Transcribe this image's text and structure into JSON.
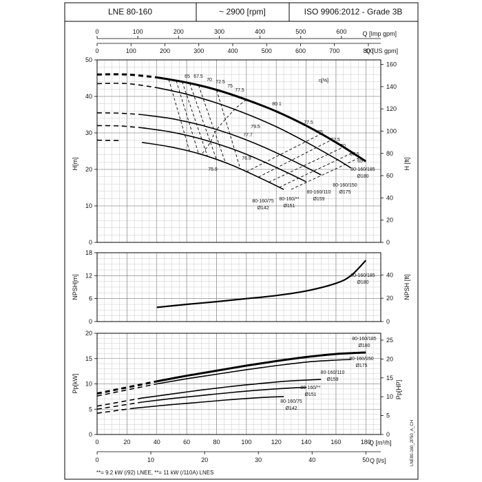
{
  "header": {
    "model": "LNE 80-160",
    "speed": "~ 2900 [rpm]",
    "standard": "ISO 9906:2012 - Grade 3B"
  },
  "footer": {
    "note": "**= 9.2 kW (/92) LNEE, **= 11 kW (/110A) LNES",
    "code": "LNE80-160_2P50_A_CH"
  },
  "chart_data": [
    {
      "type": "line",
      "panel": "head",
      "xlabel": "Q [m³/h]",
      "ylabel": "H[m]",
      "ylabel_right": "H [ft]",
      "xlim": [
        0,
        190
      ],
      "ylim": [
        0,
        50
      ],
      "yticks": [
        0,
        10,
        20,
        30,
        40,
        50
      ],
      "yticks_right": [
        0,
        20,
        40,
        60,
        80,
        100,
        120,
        140,
        160
      ],
      "top_axis_imp": {
        "label": "Q [Imp gpm]",
        "ticks": [
          0,
          100,
          200,
          300,
          400,
          500,
          600
        ]
      },
      "top_axis_us": {
        "label": "Q [US gpm]",
        "ticks": [
          0,
          100,
          200,
          300,
          400,
          500,
          600,
          700,
          800
        ]
      },
      "efficiency_label": "η[%]",
      "series": [
        {
          "name": "80-160/185",
          "diameter": "Ø180",
          "q_min": 40,
          "x": [
            0,
            20,
            40,
            60,
            80,
            100,
            120,
            140,
            160,
            180
          ],
          "y": [
            46,
            46.0,
            45.2,
            43.8,
            41.8,
            39.1,
            35.9,
            32.0,
            27.4,
            22.2
          ]
        },
        {
          "name": "80-160/150",
          "diameter": "Ø175",
          "q_min": 40,
          "x": [
            0,
            20,
            40,
            60,
            80,
            100,
            120,
            140,
            160,
            170
          ],
          "y": [
            43.5,
            43.5,
            42.4,
            40.6,
            38.2,
            35.2,
            31.7,
            27.5,
            22.9,
            20.4
          ]
        },
        {
          "name": "80-160/110",
          "diameter": "Ø159",
          "q_min": 30,
          "x": [
            0,
            15,
            30,
            50,
            70,
            90,
            110,
            130,
            150
          ],
          "y": [
            35.5,
            35.4,
            35.0,
            33.9,
            32.1,
            29.6,
            26.4,
            22.6,
            18.5
          ]
        },
        {
          "name": "80-160/**",
          "diameter": "Ø151",
          "q_min": 30,
          "x": [
            0,
            15,
            30,
            50,
            70,
            90,
            110,
            130,
            140
          ],
          "y": [
            32,
            31.9,
            31.4,
            30.2,
            28.3,
            25.7,
            22.4,
            18.6,
            16.6
          ]
        },
        {
          "name": "80-160/75",
          "diameter": "Ø142",
          "q_min": 25,
          "x": [
            0,
            15,
            30,
            50,
            70,
            90,
            110,
            125
          ],
          "y": [
            28,
            27.9,
            27.4,
            26.1,
            24.1,
            21.2,
            17.5,
            14.5
          ]
        }
      ],
      "efficiency_labels": [
        "65",
        "67.5",
        "70",
        "72.5",
        "75",
        "77.5",
        "80.1",
        "79.5",
        "77.7",
        "76.9",
        "75.9",
        "77.5",
        "75",
        "72.5",
        "70",
        "67.5",
        "65"
      ],
      "curve_labels": [
        {
          "line1": "80-160/185",
          "line2": "Ø180"
        },
        {
          "line1": "80-160/150",
          "line2": "Ø175"
        },
        {
          "line1": "80-160/110",
          "line2": "Ø159"
        },
        {
          "line1": "80-160/**",
          "line2": "Ø151"
        },
        {
          "line1": "80-160/75",
          "line2": "Ø142"
        }
      ]
    },
    {
      "type": "line",
      "panel": "npsh",
      "ylabel": "NPSH[m]",
      "ylabel_right": "NPSH [ft]",
      "xlim": [
        0,
        190
      ],
      "ylim": [
        0,
        18
      ],
      "yticks": [
        0,
        6,
        12,
        18
      ],
      "yticks_right": [
        0,
        20,
        40
      ],
      "series": [
        {
          "name": "80-160/185",
          "diameter": "Ø180",
          "x": [
            40,
            60,
            80,
            100,
            120,
            140,
            160,
            170,
            180
          ],
          "y": [
            3.7,
            4.5,
            5.2,
            6.0,
            6.8,
            8.0,
            10.0,
            12.0,
            16.0
          ]
        }
      ]
    },
    {
      "type": "line",
      "panel": "power",
      "ylabel": "Pp[kW]",
      "ylabel_right": "Pp[HP]",
      "xlabel": "Q [m³/h]",
      "xlabel_bottom": "Q [l/s]",
      "xlim": [
        0,
        190
      ],
      "ylim": [
        0,
        20
      ],
      "yticks": [
        0,
        5,
        10,
        15,
        20
      ],
      "yticks_right": [
        0,
        5,
        10,
        15,
        20,
        25
      ],
      "xticks": [
        0,
        20,
        40,
        60,
        80,
        100,
        120,
        140,
        160,
        180
      ],
      "xticks_ls": [
        0,
        10,
        20,
        30,
        40,
        50
      ],
      "series": [
        {
          "name": "80-160/185",
          "diameter": "Ø180",
          "q_min": 40,
          "x": [
            0,
            40,
            60,
            80,
            100,
            120,
            140,
            160,
            180
          ],
          "y": [
            8.1,
            10.5,
            11.6,
            12.6,
            13.6,
            14.5,
            15.3,
            15.9,
            16.2
          ]
        },
        {
          "name": "80-160/150",
          "diameter": "Ø175",
          "q_min": 40,
          "x": [
            0,
            40,
            60,
            80,
            100,
            120,
            140,
            160,
            170
          ],
          "y": [
            7.6,
            10.0,
            11.0,
            11.9,
            12.8,
            13.6,
            14.3,
            14.7,
            14.8
          ]
        },
        {
          "name": "80-160/110",
          "diameter": "Ø159",
          "q_min": 30,
          "x": [
            0,
            30,
            50,
            70,
            90,
            110,
            130,
            150
          ],
          "y": [
            5.6,
            7.2,
            8.0,
            8.8,
            9.5,
            10.1,
            10.6,
            10.9
          ]
        },
        {
          "name": "80-160/**",
          "diameter": "Ø151",
          "q_min": 30,
          "x": [
            0,
            30,
            50,
            70,
            90,
            110,
            130,
            140
          ],
          "y": [
            5.0,
            6.4,
            7.1,
            7.7,
            8.3,
            8.8,
            9.2,
            9.3
          ]
        },
        {
          "name": "80-160/75",
          "diameter": "Ø142",
          "q_min": 25,
          "x": [
            0,
            25,
            50,
            70,
            90,
            110,
            125
          ],
          "y": [
            4.2,
            5.2,
            5.9,
            6.4,
            6.9,
            7.3,
            7.5
          ]
        }
      ],
      "curve_labels": [
        {
          "line1": "80-160/185",
          "line2": "Ø180"
        },
        {
          "line1": "80-160/150",
          "line2": "Ø175"
        },
        {
          "line1": "80-160/110",
          "line2": "Ø159"
        },
        {
          "line1": "80-160/**",
          "line2": "Ø151"
        },
        {
          "line1": "80-160/75",
          "line2": "Ø142"
        }
      ]
    }
  ]
}
